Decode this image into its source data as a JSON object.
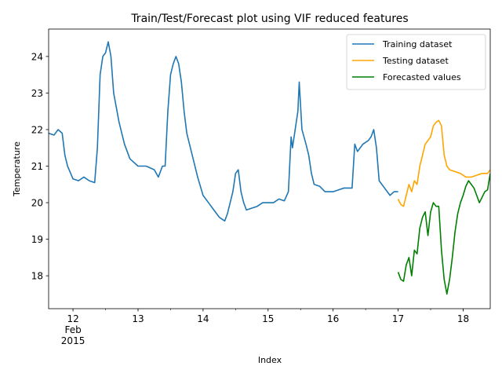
{
  "chart_data": {
    "type": "line",
    "title": "Train/Test/Forecast plot using VIF reduced features",
    "xlabel": "Index",
    "ylabel": "Temperature",
    "xlim": [
      "2015-02-11T15:00",
      "2015-02-18T10:00"
    ],
    "ylim": [
      17.1,
      24.75
    ],
    "x_ticks": [
      {
        "value": "2015-02-12",
        "lines": [
          "12",
          "Feb",
          "2015"
        ]
      },
      {
        "value": "2015-02-13",
        "lines": [
          "13"
        ]
      },
      {
        "value": "2015-02-14",
        "lines": [
          "14"
        ]
      },
      {
        "value": "2015-02-15",
        "lines": [
          "15"
        ]
      },
      {
        "value": "2015-02-16",
        "lines": [
          "16"
        ]
      },
      {
        "value": "2015-02-17",
        "lines": [
          "17"
        ]
      },
      {
        "value": "2015-02-18",
        "lines": [
          "18"
        ]
      }
    ],
    "y_ticks": [
      18,
      19,
      20,
      21,
      22,
      23,
      24
    ],
    "grid": false,
    "legend_position": "top-right",
    "series": [
      {
        "name": "Training dataset",
        "color": "#1f77b4",
        "points": [
          [
            "2015-02-11T15:00",
            21.9
          ],
          [
            "2015-02-11T17:00",
            21.85
          ],
          [
            "2015-02-11T18:30",
            22.0
          ],
          [
            "2015-02-11T20:00",
            21.9
          ],
          [
            "2015-02-11T21:00",
            21.3
          ],
          [
            "2015-02-11T22:00",
            21.0
          ],
          [
            "2015-02-12T00:00",
            20.65
          ],
          [
            "2015-02-12T02:00",
            20.6
          ],
          [
            "2015-02-12T04:00",
            20.7
          ],
          [
            "2015-02-12T06:00",
            20.6
          ],
          [
            "2015-02-12T08:00",
            20.55
          ],
          [
            "2015-02-12T09:00",
            21.5
          ],
          [
            "2015-02-12T10:00",
            23.5
          ],
          [
            "2015-02-12T11:00",
            24.0
          ],
          [
            "2015-02-12T12:00",
            24.1
          ],
          [
            "2015-02-12T13:00",
            24.4
          ],
          [
            "2015-02-12T14:00",
            24.0
          ],
          [
            "2015-02-12T15:00",
            23.0
          ],
          [
            "2015-02-12T17:00",
            22.2
          ],
          [
            "2015-02-12T19:00",
            21.6
          ],
          [
            "2015-02-12T21:00",
            21.2
          ],
          [
            "2015-02-13T00:00",
            21.0
          ],
          [
            "2015-02-13T03:00",
            21.0
          ],
          [
            "2015-02-13T06:00",
            20.9
          ],
          [
            "2015-02-13T07:30",
            20.7
          ],
          [
            "2015-02-13T09:00",
            21.0
          ],
          [
            "2015-02-13T10:00",
            21.0
          ],
          [
            "2015-02-13T11:00",
            22.5
          ],
          [
            "2015-02-13T12:00",
            23.5
          ],
          [
            "2015-02-13T13:00",
            23.8
          ],
          [
            "2015-02-13T14:00",
            24.0
          ],
          [
            "2015-02-13T15:00",
            23.8
          ],
          [
            "2015-02-13T16:00",
            23.3
          ],
          [
            "2015-02-13T17:00",
            22.5
          ],
          [
            "2015-02-13T18:00",
            21.9
          ],
          [
            "2015-02-13T20:00",
            21.3
          ],
          [
            "2015-02-13T22:00",
            20.7
          ],
          [
            "2015-02-14T00:00",
            20.2
          ],
          [
            "2015-02-14T02:00",
            20.0
          ],
          [
            "2015-02-14T04:00",
            19.8
          ],
          [
            "2015-02-14T06:00",
            19.6
          ],
          [
            "2015-02-14T08:00",
            19.5
          ],
          [
            "2015-02-14T09:00",
            19.7
          ],
          [
            "2015-02-14T10:00",
            20.0
          ],
          [
            "2015-02-14T11:00",
            20.3
          ],
          [
            "2015-02-14T12:00",
            20.8
          ],
          [
            "2015-02-14T13:00",
            20.9
          ],
          [
            "2015-02-14T14:00",
            20.3
          ],
          [
            "2015-02-14T15:00",
            20.0
          ],
          [
            "2015-02-14T16:00",
            19.8
          ],
          [
            "2015-02-14T18:00",
            19.85
          ],
          [
            "2015-02-14T20:00",
            19.9
          ],
          [
            "2015-02-14T22:00",
            20.0
          ],
          [
            "2015-02-15T00:00",
            20.0
          ],
          [
            "2015-02-15T02:00",
            20.0
          ],
          [
            "2015-02-15T04:00",
            20.1
          ],
          [
            "2015-02-15T06:00",
            20.05
          ],
          [
            "2015-02-15T07:30",
            20.3
          ],
          [
            "2015-02-15T08:30",
            21.8
          ],
          [
            "2015-02-15T09:00",
            21.5
          ],
          [
            "2015-02-15T10:00",
            22.0
          ],
          [
            "2015-02-15T11:00",
            22.5
          ],
          [
            "2015-02-15T11:30",
            23.3
          ],
          [
            "2015-02-15T12:30",
            22.0
          ],
          [
            "2015-02-15T14:00",
            21.6
          ],
          [
            "2015-02-15T15:00",
            21.3
          ],
          [
            "2015-02-15T16:00",
            20.8
          ],
          [
            "2015-02-15T17:00",
            20.5
          ],
          [
            "2015-02-15T19:00",
            20.45
          ],
          [
            "2015-02-15T21:00",
            20.3
          ],
          [
            "2015-02-16T00:00",
            20.3
          ],
          [
            "2015-02-16T02:00",
            20.35
          ],
          [
            "2015-02-16T04:00",
            20.4
          ],
          [
            "2015-02-16T06:00",
            20.4
          ],
          [
            "2015-02-16T07:00",
            20.4
          ],
          [
            "2015-02-16T08:00",
            21.6
          ],
          [
            "2015-02-16T09:00",
            21.4
          ],
          [
            "2015-02-16T11:00",
            21.6
          ],
          [
            "2015-02-16T13:00",
            21.7
          ],
          [
            "2015-02-16T14:00",
            21.8
          ],
          [
            "2015-02-16T15:00",
            22.0
          ],
          [
            "2015-02-16T16:00",
            21.5
          ],
          [
            "2015-02-16T17:00",
            20.6
          ],
          [
            "2015-02-16T19:00",
            20.4
          ],
          [
            "2015-02-16T21:00",
            20.2
          ],
          [
            "2015-02-16T22:30",
            20.3
          ],
          [
            "2015-02-17T00:00",
            20.3
          ]
        ]
      },
      {
        "name": "Testing dataset",
        "color": "#ffa500",
        "points": [
          [
            "2015-02-17T00:00",
            20.1
          ],
          [
            "2015-02-17T01:00",
            19.95
          ],
          [
            "2015-02-17T02:00",
            19.9
          ],
          [
            "2015-02-17T03:00",
            20.2
          ],
          [
            "2015-02-17T04:00",
            20.5
          ],
          [
            "2015-02-17T05:00",
            20.3
          ],
          [
            "2015-02-17T06:00",
            20.6
          ],
          [
            "2015-02-17T07:00",
            20.5
          ],
          [
            "2015-02-17T08:00",
            21.0
          ],
          [
            "2015-02-17T09:00",
            21.3
          ],
          [
            "2015-02-17T10:00",
            21.6
          ],
          [
            "2015-02-17T11:00",
            21.7
          ],
          [
            "2015-02-17T12:00",
            21.8
          ],
          [
            "2015-02-17T13:00",
            22.1
          ],
          [
            "2015-02-17T14:00",
            22.2
          ],
          [
            "2015-02-17T15:00",
            22.25
          ],
          [
            "2015-02-17T16:00",
            22.1
          ],
          [
            "2015-02-17T17:00",
            21.3
          ],
          [
            "2015-02-17T18:00",
            21.0
          ],
          [
            "2015-02-17T19:00",
            20.9
          ],
          [
            "2015-02-17T21:00",
            20.85
          ],
          [
            "2015-02-17T23:00",
            20.8
          ],
          [
            "2015-02-18T01:00",
            20.7
          ],
          [
            "2015-02-18T03:00",
            20.7
          ],
          [
            "2015-02-18T05:00",
            20.75
          ],
          [
            "2015-02-18T07:00",
            20.8
          ],
          [
            "2015-02-18T09:00",
            20.8
          ],
          [
            "2015-02-18T10:00",
            20.9
          ]
        ]
      },
      {
        "name": "Forecasted values",
        "color": "#008000",
        "points": [
          [
            "2015-02-17T00:00",
            18.1
          ],
          [
            "2015-02-17T01:00",
            17.9
          ],
          [
            "2015-02-17T02:00",
            17.85
          ],
          [
            "2015-02-17T03:00",
            18.3
          ],
          [
            "2015-02-17T04:00",
            18.5
          ],
          [
            "2015-02-17T05:00",
            18.0
          ],
          [
            "2015-02-17T06:00",
            18.7
          ],
          [
            "2015-02-17T07:00",
            18.6
          ],
          [
            "2015-02-17T08:00",
            19.3
          ],
          [
            "2015-02-17T09:00",
            19.6
          ],
          [
            "2015-02-17T10:00",
            19.75
          ],
          [
            "2015-02-17T11:00",
            19.1
          ],
          [
            "2015-02-17T12:00",
            19.75
          ],
          [
            "2015-02-17T13:00",
            20.0
          ],
          [
            "2015-02-17T14:00",
            19.9
          ],
          [
            "2015-02-17T15:00",
            19.9
          ],
          [
            "2015-02-17T16:00",
            18.7
          ],
          [
            "2015-02-17T17:00",
            17.9
          ],
          [
            "2015-02-17T18:00",
            17.5
          ],
          [
            "2015-02-17T19:00",
            17.9
          ],
          [
            "2015-02-17T20:00",
            18.5
          ],
          [
            "2015-02-17T21:00",
            19.2
          ],
          [
            "2015-02-17T22:00",
            19.7
          ],
          [
            "2015-02-17T23:00",
            20.0
          ],
          [
            "2015-02-18T00:00",
            20.2
          ],
          [
            "2015-02-18T01:00",
            20.45
          ],
          [
            "2015-02-18T02:00",
            20.6
          ],
          [
            "2015-02-18T03:00",
            20.5
          ],
          [
            "2015-02-18T04:00",
            20.4
          ],
          [
            "2015-02-18T05:00",
            20.2
          ],
          [
            "2015-02-18T06:00",
            20.0
          ],
          [
            "2015-02-18T07:00",
            20.15
          ],
          [
            "2015-02-18T08:00",
            20.3
          ],
          [
            "2015-02-18T09:00",
            20.35
          ],
          [
            "2015-02-18T10:00",
            20.8
          ]
        ]
      }
    ]
  }
}
